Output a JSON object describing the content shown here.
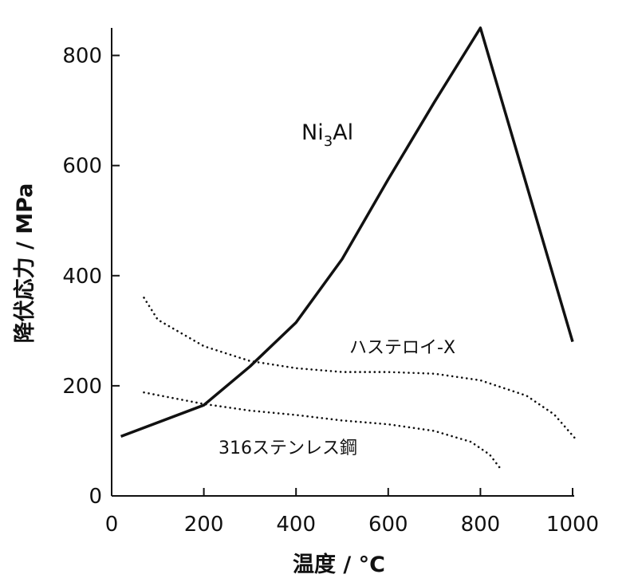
{
  "chart_data": {
    "type": "line",
    "xlabel": "温度 / °C",
    "ylabel": "降伏応力 / MPa",
    "xlim": [
      0,
      1000
    ],
    "ylim": [
      0,
      850
    ],
    "xticks": [
      0,
      200,
      400,
      600,
      800,
      1000
    ],
    "yticks": [
      0,
      200,
      400,
      600,
      800
    ],
    "grid": false,
    "series": [
      {
        "name": "Ni3Al",
        "style": "solid",
        "x": [
          20,
          200,
          300,
          400,
          500,
          600,
          700,
          800,
          1000
        ],
        "y": [
          108,
          165,
          235,
          315,
          430,
          575,
          715,
          850,
          280
        ]
      },
      {
        "name": "ハステロイ-X",
        "style": "dotted",
        "x": [
          70,
          100,
          200,
          300,
          400,
          500,
          600,
          700,
          800,
          900,
          960,
          1010
        ],
        "y": [
          360,
          320,
          272,
          245,
          232,
          225,
          225,
          222,
          210,
          182,
          148,
          100
        ]
      },
      {
        "name": "316ステンレス鋼",
        "style": "dotted",
        "x": [
          70,
          100,
          200,
          300,
          400,
          500,
          600,
          700,
          780,
          820,
          845
        ],
        "y": [
          188,
          183,
          167,
          155,
          147,
          137,
          130,
          118,
          98,
          75,
          48
        ]
      }
    ]
  },
  "labels": {
    "ni3al_main": "Ni",
    "ni3al_sub": "3",
    "ni3al_tail": "Al",
    "hastelloy": "ハステロイ-X",
    "stainless": "316ステンレス鋼"
  },
  "colors": {
    "ink": "#111111"
  }
}
